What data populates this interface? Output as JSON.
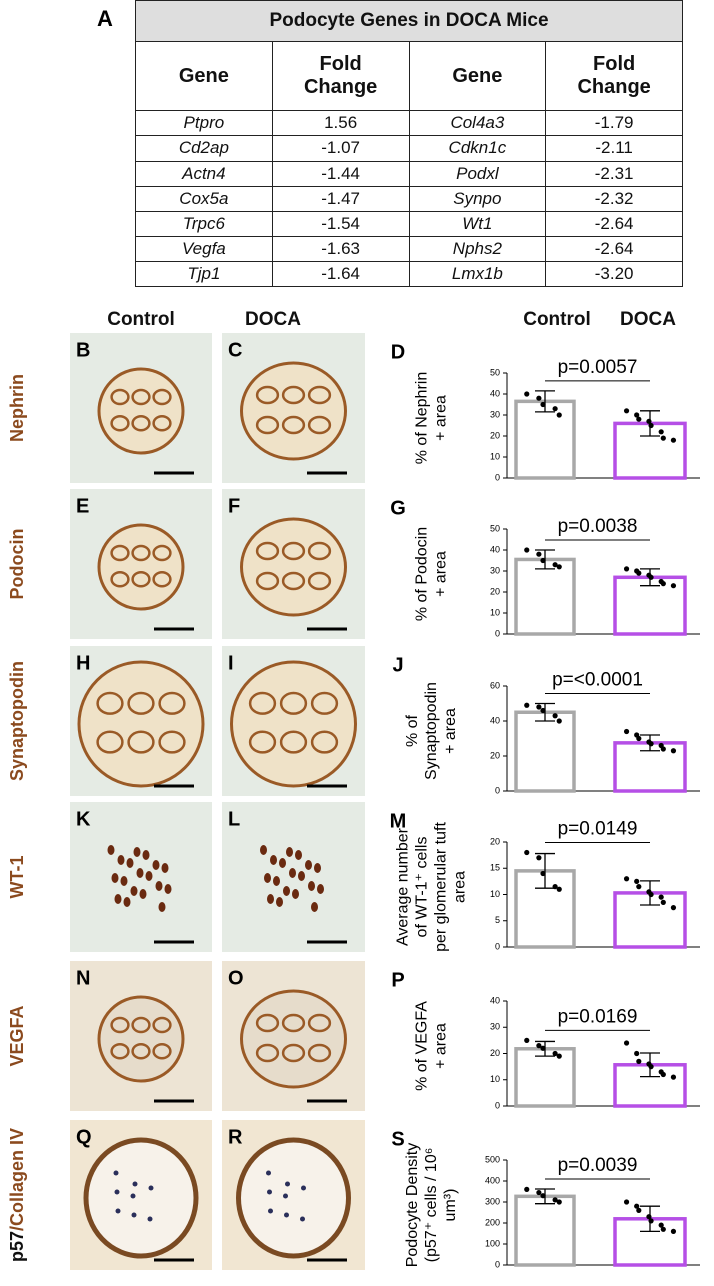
{
  "table": {
    "panel": "A",
    "title": "Podocyte Genes in DOCA Mice",
    "header": [
      "Gene",
      "Fold Change",
      "Gene",
      "Fold Change"
    ],
    "rows": [
      [
        "Ptpro",
        "1.56",
        "Col4a3",
        "-1.79"
      ],
      [
        "Cd2ap",
        "-1.07",
        "Cdkn1c",
        "-2.11"
      ],
      [
        "Actn4",
        "-1.44",
        "Podxl",
        "-2.31"
      ],
      [
        "Cox5a",
        "-1.47",
        "Synpo",
        "-2.32"
      ],
      [
        "Trpc6",
        "-1.54",
        "Wt1",
        "-2.64"
      ],
      [
        "Vegfa",
        "-1.63",
        "Nphs2",
        "-2.64"
      ],
      [
        "Tjp1",
        "-1.64",
        "Lmx1b",
        "-3.20"
      ]
    ]
  },
  "image_header": [
    "Control",
    "DOCA"
  ],
  "chart_header": [
    "Control",
    "DOCA"
  ],
  "image_rows": [
    {
      "label": [
        "Nephrin"
      ],
      "panels": [
        "B",
        "C"
      ]
    },
    {
      "label": [
        "Podocin"
      ],
      "panels": [
        "E",
        "F"
      ]
    },
    {
      "label": [
        "Synaptopodin"
      ],
      "panels": [
        "H",
        "I"
      ]
    },
    {
      "label": [
        "WT-1"
      ],
      "panels": [
        "K",
        "L"
      ]
    },
    {
      "label": [
        "VEGFA"
      ],
      "panels": [
        "N",
        "O"
      ]
    },
    {
      "label": [
        "p57",
        "/Collagen IV"
      ],
      "panels": [
        "Q",
        "R"
      ]
    }
  ],
  "chart_data": [
    {
      "type": "bar",
      "panel": "D",
      "ylabel": [
        "% of  Nephrin",
        "+  area"
      ],
      "annotation": "p=0.0057",
      "values": [
        36.5,
        26
      ],
      "errors": [
        5,
        6
      ],
      "colors": [
        "#a8a8a8",
        "#b54fe6"
      ],
      "points": [
        [
          40,
          38,
          35,
          33,
          30
        ],
        [
          32,
          30,
          28,
          27,
          25,
          22,
          19,
          18
        ]
      ],
      "ylim": [
        0,
        50
      ],
      "yticks": [
        0,
        10,
        20,
        30,
        40,
        50
      ]
    },
    {
      "type": "bar",
      "panel": "G",
      "ylabel": [
        "% of  Podocin",
        "+ area"
      ],
      "annotation": "p=0.0038",
      "values": [
        35.5,
        27
      ],
      "errors": [
        4.5,
        4
      ],
      "colors": [
        "#a8a8a8",
        "#b54fe6"
      ],
      "points": [
        [
          40,
          38,
          35,
          33,
          32
        ],
        [
          31,
          30,
          29,
          28,
          27,
          25,
          24,
          23
        ]
      ],
      "ylim": [
        0,
        50
      ],
      "yticks": [
        0,
        10,
        20,
        30,
        40,
        50
      ]
    },
    {
      "type": "bar",
      "panel": "J",
      "ylabel": [
        "% of",
        "Synaptopodin",
        "+ area"
      ],
      "annotation": "p=<0.0001",
      "values": [
        45,
        27.5
      ],
      "errors": [
        5,
        4.5
      ],
      "colors": [
        "#a8a8a8",
        "#b54fe6"
      ],
      "points": [
        [
          49,
          48,
          46,
          43,
          40
        ],
        [
          34,
          32,
          30,
          28,
          27,
          26,
          24,
          23
        ]
      ],
      "ylim": [
        0,
        60
      ],
      "yticks": [
        0,
        20,
        40,
        60
      ]
    },
    {
      "type": "bar",
      "panel": "M",
      "ylabel": [
        "Average number",
        "of  WT-1⁺ cells",
        "per glomerular tuft",
        "area"
      ],
      "annotation": "p=0.0149",
      "values": [
        14.5,
        10.3
      ],
      "errors": [
        3.3,
        2.3
      ],
      "colors": [
        "#a8a8a8",
        "#b54fe6"
      ],
      "points": [
        [
          18,
          17,
          14,
          11.5,
          11
        ],
        [
          13,
          12.5,
          11.5,
          10.5,
          10,
          9.5,
          8.5,
          7.5
        ]
      ],
      "ylim": [
        0,
        20
      ],
      "yticks": [
        0,
        5,
        10,
        15,
        20
      ]
    },
    {
      "type": "bar",
      "panel": "P",
      "ylabel": [
        "% of  VEGFA",
        "+ area"
      ],
      "annotation": "p=0.0169",
      "values": [
        21.8,
        15.7
      ],
      "errors": [
        2.8,
        4.5
      ],
      "colors": [
        "#a8a8a8",
        "#b54fe6"
      ],
      "points": [
        [
          25,
          23,
          22,
          20,
          19
        ],
        [
          24,
          20,
          17,
          16,
          15,
          13,
          12,
          11
        ]
      ],
      "ylim": [
        0,
        40
      ],
      "yticks": [
        0,
        10,
        20,
        30,
        40
      ]
    },
    {
      "type": "bar",
      "panel": "S",
      "ylabel": [
        "Podocyte Density",
        "(p57⁺ cells / 10⁶",
        "um³)"
      ],
      "annotation": "p=0.0039",
      "values": [
        327,
        220
      ],
      "errors": [
        35,
        60
      ],
      "colors": [
        "#a8a8a8",
        "#b54fe6"
      ],
      "points": [
        [
          360,
          345,
          330,
          310,
          300
        ],
        [
          300,
          280,
          260,
          230,
          210,
          190,
          170,
          160
        ]
      ],
      "ylim": [
        0,
        500
      ],
      "yticks": [
        0,
        100,
        200,
        300,
        400,
        500
      ]
    }
  ]
}
